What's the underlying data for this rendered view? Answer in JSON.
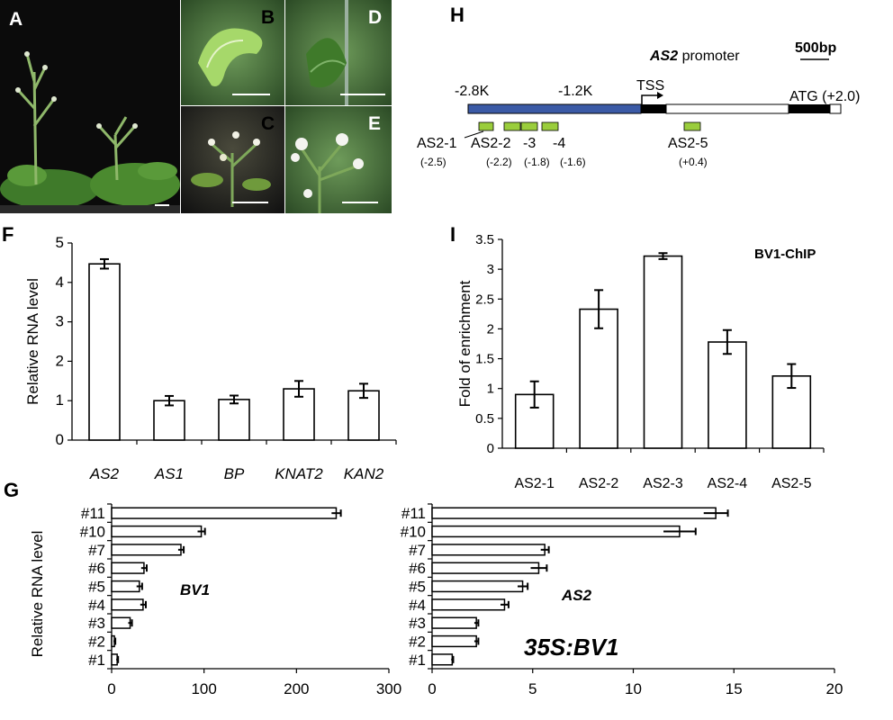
{
  "colors": {
    "promoter_blue": "#3b5aa6",
    "region_green": "#9acd3c",
    "black": "#000000",
    "photo_dark": "#0b0b0b"
  },
  "photos": [
    {
      "label": "A"
    },
    {
      "label": "B"
    },
    {
      "label": "C"
    },
    {
      "label": "D"
    },
    {
      "label": "E"
    }
  ],
  "panel_labels": {
    "F": "F",
    "G": "G",
    "H": "H",
    "I": "I"
  },
  "promoter_diagram": {
    "title_italic": "AS2",
    "title_rest": " promoter",
    "scale_label": "500bp",
    "positions": [
      {
        "label": "-2.8K"
      },
      {
        "label": "-1.2K"
      },
      {
        "label": "TSS"
      },
      {
        "label": "ATG (+2.0)"
      }
    ],
    "regions": [
      {
        "name": "AS2-1",
        "pos": "(-2.5)"
      },
      {
        "name": "AS2-2",
        "pos": "(-2.2)"
      },
      {
        "name": "-3",
        "pos": "(-1.8)"
      },
      {
        "name": "-4",
        "pos": "(-1.6)"
      },
      {
        "name": "AS2-5",
        "pos": "(+0.4)"
      }
    ]
  },
  "chart_data": [
    {
      "panel": "F",
      "type": "bar",
      "categories": [
        "AS2",
        "AS1",
        "BP",
        "KNAT2",
        "KAN2"
      ],
      "values": [
        4.47,
        1.0,
        1.03,
        1.3,
        1.25
      ],
      "errors": [
        0.12,
        0.12,
        0.1,
        0.2,
        0.18
      ],
      "ylabel": "Relative RNA level",
      "ylim": [
        0,
        5
      ],
      "yticks": [
        "0",
        "1",
        "2",
        "3",
        "4",
        "5"
      ]
    },
    {
      "panel": "I",
      "type": "bar",
      "categories": [
        "AS2-1",
        "AS2-2",
        "AS2-3",
        "AS2-4",
        "AS2-5"
      ],
      "values": [
        0.9,
        2.33,
        3.22,
        1.78,
        1.21
      ],
      "errors": [
        0.22,
        0.32,
        0.05,
        0.2,
        0.2
      ],
      "ylabel": "Fold of enrichment",
      "annotation": "BV1-ChIP",
      "ylim": [
        0,
        3.5
      ],
      "yticks": [
        "0",
        "0.5",
        "1",
        "1.5",
        "2",
        "2.5",
        "3",
        "3.5"
      ]
    },
    {
      "panel": "G-left",
      "type": "bar",
      "orientation": "horizontal",
      "categories": [
        "#11",
        "#10",
        "#7",
        "#6",
        "#5",
        "#4",
        "#3",
        "#2",
        "#1"
      ],
      "values": [
        243,
        97,
        75,
        35,
        30,
        34,
        20,
        3,
        6
      ],
      "errors": [
        5,
        4,
        3,
        3,
        3,
        3,
        2,
        1,
        1
      ],
      "annotation": "BV1",
      "ylabel": "Relative RNA level",
      "xlim": [
        0,
        300
      ],
      "xticks": [
        "0",
        "100",
        "200",
        "300"
      ]
    },
    {
      "panel": "G-right",
      "type": "bar",
      "orientation": "horizontal",
      "categories": [
        "#11",
        "#10",
        "#7",
        "#6",
        "#5",
        "#4",
        "#3",
        "#2",
        "#1"
      ],
      "values": [
        14.1,
        12.3,
        5.6,
        5.3,
        4.5,
        3.6,
        2.2,
        2.2,
        1.0
      ],
      "errors": [
        0.6,
        0.8,
        0.2,
        0.4,
        0.25,
        0.2,
        0.1,
        0.1,
        0.05
      ],
      "annotation": "AS2",
      "note": "35S:BV1",
      "xlim": [
        0,
        20
      ],
      "xticks": [
        "0",
        "5",
        "10",
        "15",
        "20"
      ]
    }
  ]
}
